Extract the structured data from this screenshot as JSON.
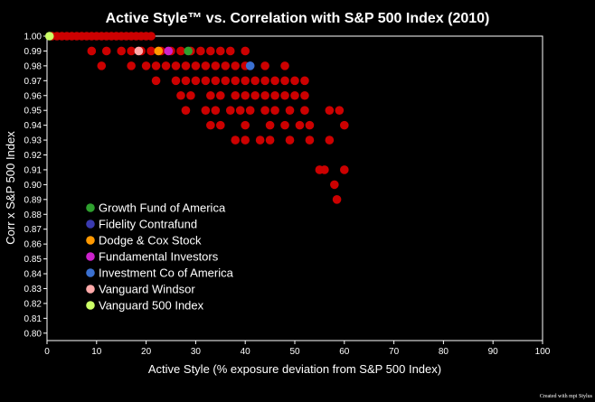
{
  "chart_data": {
    "type": "scatter",
    "title": "Active Style™ vs. Correlation with S&P 500 Index (2010)",
    "xlabel": "Active Style (% exposure deviation from S&P 500 Index)",
    "ylabel": "Corr x S&P 500 Index",
    "xlim": [
      0,
      100
    ],
    "ylim": [
      0.795,
      1.0
    ],
    "xticks": [
      "0",
      "10",
      "20",
      "30",
      "40",
      "50",
      "60",
      "70",
      "80",
      "90",
      "100"
    ],
    "yticks": [
      "0.80",
      "0.81",
      "0.82",
      "0.83",
      "0.84",
      "0.85",
      "0.86",
      "0.87",
      "0.88",
      "0.89",
      "0.90",
      "0.91",
      "0.92",
      "0.93",
      "0.94",
      "0.95",
      "0.96",
      "0.97",
      "0.98",
      "0.99",
      "1.00"
    ],
    "grid": false,
    "legend_position": "bottom-left",
    "credit": "Created with mpi Stylus",
    "colors": {
      "background": "#000000",
      "other_funds": "#cc0000"
    },
    "other_funds": [
      [
        1,
        1.0
      ],
      [
        2,
        1.0
      ],
      [
        3,
        1.0
      ],
      [
        4,
        1.0
      ],
      [
        5,
        1.0
      ],
      [
        6,
        1.0
      ],
      [
        7,
        1.0
      ],
      [
        8,
        1.0
      ],
      [
        9,
        1.0
      ],
      [
        10,
        1.0
      ],
      [
        11,
        1.0
      ],
      [
        12,
        1.0
      ],
      [
        13,
        1.0
      ],
      [
        14,
        1.0
      ],
      [
        15,
        1.0
      ],
      [
        16,
        1.0
      ],
      [
        17,
        1.0
      ],
      [
        18,
        1.0
      ],
      [
        19,
        1.0
      ],
      [
        20,
        1.0
      ],
      [
        21,
        1.0
      ],
      [
        9,
        0.99
      ],
      [
        12,
        0.99
      ],
      [
        15,
        0.99
      ],
      [
        17,
        0.99
      ],
      [
        19,
        0.99
      ],
      [
        21,
        0.99
      ],
      [
        23,
        0.99
      ],
      [
        25,
        0.99
      ],
      [
        27,
        0.99
      ],
      [
        29,
        0.99
      ],
      [
        31,
        0.99
      ],
      [
        33,
        0.99
      ],
      [
        35,
        0.99
      ],
      [
        37,
        0.99
      ],
      [
        40,
        0.99
      ],
      [
        11,
        0.98
      ],
      [
        17,
        0.98
      ],
      [
        20,
        0.98
      ],
      [
        22,
        0.98
      ],
      [
        24,
        0.98
      ],
      [
        26,
        0.98
      ],
      [
        28,
        0.98
      ],
      [
        30,
        0.98
      ],
      [
        32,
        0.98
      ],
      [
        34,
        0.98
      ],
      [
        36,
        0.98
      ],
      [
        38,
        0.98
      ],
      [
        40,
        0.98
      ],
      [
        44,
        0.98
      ],
      [
        48,
        0.98
      ],
      [
        22,
        0.97
      ],
      [
        26,
        0.97
      ],
      [
        28,
        0.97
      ],
      [
        30,
        0.97
      ],
      [
        32,
        0.97
      ],
      [
        34,
        0.97
      ],
      [
        36,
        0.97
      ],
      [
        38,
        0.97
      ],
      [
        40,
        0.97
      ],
      [
        42,
        0.97
      ],
      [
        44,
        0.97
      ],
      [
        46,
        0.97
      ],
      [
        48,
        0.97
      ],
      [
        50,
        0.97
      ],
      [
        52,
        0.97
      ],
      [
        27,
        0.96
      ],
      [
        29,
        0.96
      ],
      [
        33,
        0.96
      ],
      [
        35,
        0.96
      ],
      [
        38,
        0.96
      ],
      [
        40,
        0.96
      ],
      [
        42,
        0.96
      ],
      [
        44,
        0.96
      ],
      [
        46,
        0.96
      ],
      [
        48,
        0.96
      ],
      [
        50,
        0.96
      ],
      [
        52,
        0.96
      ],
      [
        28,
        0.95
      ],
      [
        32,
        0.95
      ],
      [
        34,
        0.95
      ],
      [
        37,
        0.95
      ],
      [
        39,
        0.95
      ],
      [
        41,
        0.95
      ],
      [
        44,
        0.95
      ],
      [
        46,
        0.95
      ],
      [
        49,
        0.95
      ],
      [
        52,
        0.95
      ],
      [
        57,
        0.95
      ],
      [
        59,
        0.95
      ],
      [
        33,
        0.94
      ],
      [
        35,
        0.94
      ],
      [
        40,
        0.94
      ],
      [
        45,
        0.94
      ],
      [
        48,
        0.94
      ],
      [
        51,
        0.94
      ],
      [
        53,
        0.94
      ],
      [
        60,
        0.94
      ],
      [
        38,
        0.93
      ],
      [
        40,
        0.93
      ],
      [
        43,
        0.93
      ],
      [
        45,
        0.93
      ],
      [
        49,
        0.93
      ],
      [
        53,
        0.93
      ],
      [
        57,
        0.93
      ],
      [
        55,
        0.91
      ],
      [
        56,
        0.91
      ],
      [
        60,
        0.91
      ],
      [
        58,
        0.9
      ],
      [
        58.5,
        0.89
      ]
    ],
    "series": [
      {
        "name": "Growth Fund of America",
        "color": "#2ea02e",
        "x": 28.5,
        "y": 0.99
      },
      {
        "name": "Fidelity Contrafund",
        "color": "#3a3ab0",
        "x": 41,
        "y": 0.98
      },
      {
        "name": "Dodge & Cox Stock",
        "color": "#ff9900",
        "x": 22.5,
        "y": 0.99
      },
      {
        "name": "Fundamental Investors",
        "color": "#cc22cc",
        "x": 24.5,
        "y": 0.99
      },
      {
        "name": "Investment Co of America",
        "color": "#3a70d0",
        "x": 41,
        "y": 0.98
      },
      {
        "name": "Vanguard Windsor",
        "color": "#ffaaaa",
        "x": 18.5,
        "y": 0.99
      },
      {
        "name": "Vanguard 500 Index",
        "color": "#ccff66",
        "x": 0.5,
        "y": 1.0
      }
    ]
  }
}
